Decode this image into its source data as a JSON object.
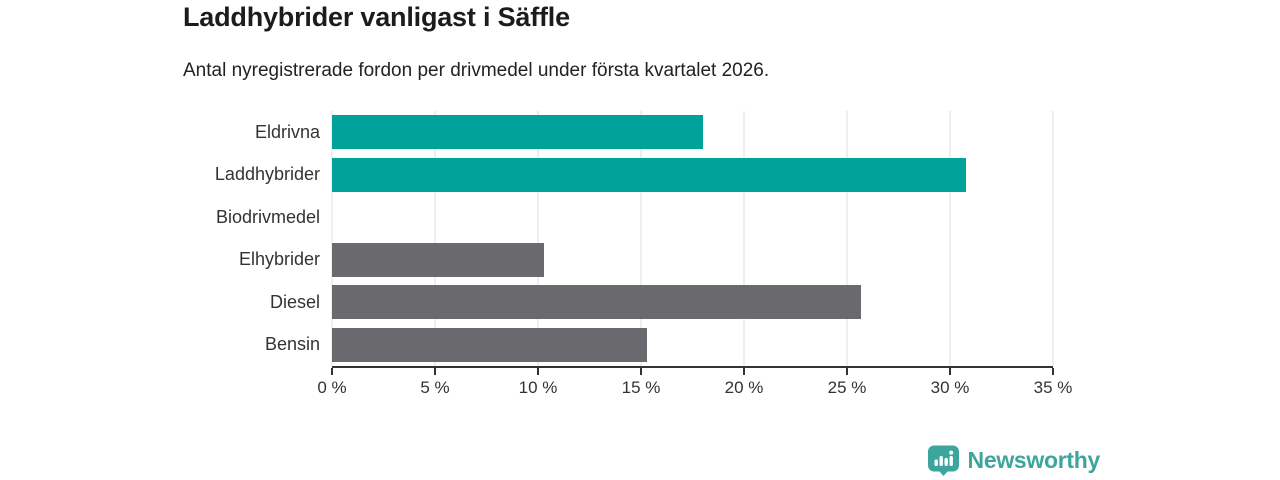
{
  "chart_data": {
    "type": "bar",
    "orientation": "horizontal",
    "title": "Laddhybrider vanligast i Säffle",
    "subtitle": "Antal nyregistrerade fordon per drivmedel under första kvartalet 2026.",
    "categories": [
      "Eldrivna",
      "Laddhybrider",
      "Biodrivmedel",
      "Elhybrider",
      "Diesel",
      "Bensin"
    ],
    "values": [
      18.0,
      30.8,
      0,
      10.3,
      25.7,
      15.3
    ],
    "bar_colors": [
      "#00a29a",
      "#00a29a",
      "#6a6a6e",
      "#6a6a6e",
      "#6a6a6e",
      "#6a6a6e"
    ],
    "unit": "%",
    "xlim": [
      0,
      35
    ],
    "ticks": [
      0,
      5,
      10,
      15,
      20,
      25,
      30,
      35
    ],
    "tick_suffix": " %",
    "grid": "vertical-gridlines-on",
    "legend": "none",
    "xlabel": "",
    "ylabel": ""
  },
  "branding": {
    "name": "Newsworthy",
    "logo_color": "#3ca69d"
  },
  "colors": {
    "highlight": "#00a29a",
    "neutral": "#6a6a6e",
    "axis": "#333333",
    "gridline": "#dedede",
    "title_text": "#1c1c1c"
  }
}
